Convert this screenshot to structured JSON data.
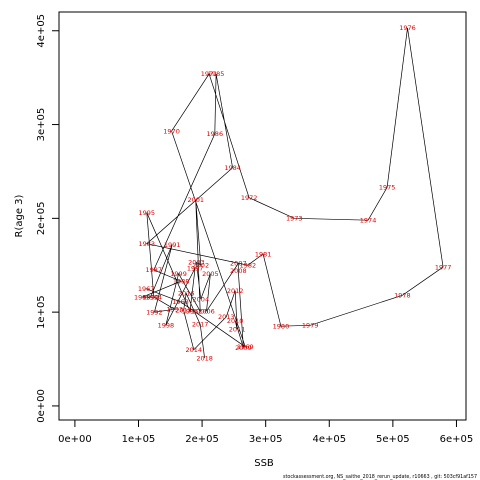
{
  "chart_data": {
    "type": "line",
    "title": "",
    "xlabel": "SSB",
    "ylabel": "R(age 3)",
    "xlim": [
      -25000,
      615000
    ],
    "ylim": [
      -15000,
      420000
    ],
    "x_ticks": [
      0,
      100000,
      200000,
      300000,
      400000,
      500000,
      600000
    ],
    "x_tick_labels": [
      "0e+00",
      "1e+05",
      "2e+05",
      "3e+05",
      "4e+05",
      "5e+05",
      "6e+05"
    ],
    "y_ticks": [
      0,
      100000,
      200000,
      300000,
      400000
    ],
    "y_tick_labels": [
      "0e+00",
      "1e+05",
      "2e+05",
      "3e+05",
      "4e+05"
    ],
    "grid": false,
    "label_color": "#e00000",
    "line_color": "#000000",
    "footer": "stockassessment.org, NS_saithe_2018_rerun_update, r10663 , git: 503cf91af157",
    "points": [
      {
        "year": "1967",
        "ssb": 580000,
        "r": 148000
      },
      {
        "year": "1968",
        "ssb": 515000,
        "r": 118000
      },
      {
        "year": "1969",
        "ssb": 370000,
        "r": 86000
      },
      {
        "year": "1970",
        "ssb": 323000,
        "r": 85000
      },
      {
        "year": "1971",
        "ssb": 295000,
        "r": 162000
      },
      {
        "year": "1972",
        "ssb": 272000,
        "r": 150000
      },
      {
        "year": "1973",
        "ssb": 275000,
        "r": 222000
      },
      {
        "year": "1974",
        "ssb": 155000,
        "r": 293000
      },
      {
        "year": "1975",
        "ssb": 210000,
        "r": 354000
      },
      {
        "year": "1976",
        "ssb": 219000,
        "r": 354000
      },
      {
        "year": "1977",
        "ssb": 250000,
        "r": 254000
      },
      {
        "year": "1978",
        "ssb": 260000,
        "r": 158000
      },
      {
        "year": "1979",
        "ssb": 260000,
        "r": 116000
      },
      {
        "year": "1980",
        "ssb": 380000,
        "r": 200000
      },
      {
        "year": "1981",
        "ssb": 465000,
        "r": 198000
      },
      {
        "year": "1982",
        "ssb": 490000,
        "r": 233000
      },
      {
        "year": "1983",
        "ssb": 524000,
        "r": 403000
      },
      {
        "year": "1984",
        "ssb": 580000,
        "r": 148000
      },
      {
        "year": "1985",
        "ssb": 118000,
        "r": 206000
      },
      {
        "year": "1986",
        "ssb": 110000,
        "r": 116000
      },
      {
        "year": "1987",
        "ssb": 115000,
        "r": 173000
      },
      {
        "year": "1988",
        "ssb": 107000,
        "r": 116000
      },
      {
        "year": "1989",
        "ssb": 120000,
        "r": 116000
      },
      {
        "year": "1990",
        "ssb": 122000,
        "r": 141000
      },
      {
        "year": "1991",
        "ssb": 123000,
        "r": 116000
      },
      {
        "year": "1992",
        "ssb": 128000,
        "r": 100000
      },
      {
        "year": "1993",
        "ssb": 143000,
        "r": 86000
      },
      {
        "year": "1994",
        "ssb": 150000,
        "r": 103000
      },
      {
        "year": "1995",
        "ssb": 145000,
        "r": 172000
      },
      {
        "year": "1996",
        "ssb": 160000,
        "r": 145000
      },
      {
        "year": "1997",
        "ssb": 175000,
        "r": 145000
      },
      {
        "year": "1998",
        "ssb": 160000,
        "r": 133000
      },
      {
        "year": "1999",
        "ssb": 170000,
        "r": 123000
      },
      {
        "year": "2000",
        "ssb": 188000,
        "r": 101000
      },
      {
        "year": "2001",
        "ssb": 190000,
        "r": 220000
      },
      {
        "year": "2002",
        "ssb": 195000,
        "r": 150000
      },
      {
        "year": "2003",
        "ssb": 192000,
        "r": 147000
      },
      {
        "year": "2004",
        "ssb": 200000,
        "r": 114000
      },
      {
        "year": "2005",
        "ssb": 213000,
        "r": 138000
      },
      {
        "year": "2006",
        "ssb": 207000,
        "r": 101000
      },
      {
        "year": "2007",
        "ssb": 252000,
        "r": 152000
      },
      {
        "year": "2008",
        "ssb": 246000,
        "r": 75000
      },
      {
        "year": "2009",
        "ssb": 267000,
        "r": 62000
      },
      {
        "year": "2010",
        "ssb": 250000,
        "r": 91000
      },
      {
        "year": "2011",
        "ssb": 255000,
        "r": 82000
      },
      {
        "year": "2012",
        "ssb": 253000,
        "r": 123000
      },
      {
        "year": "2013",
        "ssb": 240000,
        "r": 95000
      },
      {
        "year": "2014",
        "ssb": 188000,
        "r": 60000
      },
      {
        "year": "2015",
        "ssb": 180000,
        "r": 102000
      },
      {
        "year": "2016",
        "ssb": 175000,
        "r": 120000
      },
      {
        "year": "2017",
        "ssb": 200000,
        "r": 87000
      },
      {
        "year": "2018",
        "ssb": 204000,
        "r": 51000
      }
    ],
    "label_points": [
      {
        "year": "1967",
        "ssb": 112000,
        "r": 125000
      },
      {
        "year": "1968",
        "ssb": 166000,
        "r": 111000
      },
      {
        "year": "1969",
        "ssb": 268000,
        "r": 63000
      },
      {
        "year": "1970",
        "ssb": 152000,
        "r": 293000
      },
      {
        "year": "1971",
        "ssb": 211000,
        "r": 354000
      },
      {
        "year": "1972",
        "ssb": 274000,
        "r": 222000
      },
      {
        "year": "1973",
        "ssb": 345000,
        "r": 200000
      },
      {
        "year": "1974",
        "ssb": 461000,
        "r": 198000
      },
      {
        "year": "1975",
        "ssb": 491000,
        "r": 233000
      },
      {
        "year": "1976",
        "ssb": 523000,
        "r": 403000
      },
      {
        "year": "1977",
        "ssb": 579000,
        "r": 148000
      },
      {
        "year": "1978",
        "ssb": 515000,
        "r": 118000
      },
      {
        "year": "1979",
        "ssb": 370000,
        "r": 86000
      },
      {
        "year": "1980",
        "ssb": 324000,
        "r": 85000
      },
      {
        "year": "1981",
        "ssb": 296000,
        "r": 162000
      },
      {
        "year": "1982",
        "ssb": 272000,
        "r": 150000
      },
      {
        "year": "1983",
        "ssb": 113000,
        "r": 173000
      },
      {
        "year": "1984",
        "ssb": 248000,
        "r": 254000
      },
      {
        "year": "1985",
        "ssb": 222000,
        "r": 354000
      },
      {
        "year": "1986",
        "ssb": 220000,
        "r": 290000
      },
      {
        "year": "1987",
        "ssb": 124000,
        "r": 145000
      },
      {
        "year": "1988",
        "ssb": 167000,
        "r": 133000
      },
      {
        "year": "1989",
        "ssb": 106000,
        "r": 116000
      },
      {
        "year": "1990",
        "ssb": 119000,
        "r": 116000
      },
      {
        "year": "1991",
        "ssb": 153000,
        "r": 172000
      },
      {
        "year": "1992",
        "ssb": 125000,
        "r": 100000
      },
      {
        "year": "1993",
        "ssb": 157000,
        "r": 103000
      },
      {
        "year": "1994",
        "ssb": 124000,
        "r": 116000
      },
      {
        "year": "1995",
        "ssb": 113000,
        "r": 206000
      },
      {
        "year": "1996",
        "ssb": 181000,
        "r": 101000
      },
      {
        "year": "1997",
        "ssb": 189000,
        "r": 147000
      },
      {
        "year": "1998",
        "ssb": 143000,
        "r": 86000
      },
      {
        "year": "1999",
        "ssb": 163000,
        "r": 141000
      },
      {
        "year": "2000",
        "ssb": 197000,
        "r": 101000
      },
      {
        "year": "2001",
        "ssb": 190000,
        "r": 220000
      },
      {
        "year": "2002",
        "ssb": 198000,
        "r": 150000
      },
      {
        "year": "2003",
        "ssb": 191000,
        "r": 153000
      },
      {
        "year": "2004",
        "ssb": 198000,
        "r": 114000
      },
      {
        "year": "2005",
        "ssb": 213000,
        "r": 141000
      },
      {
        "year": "2006",
        "ssb": 207000,
        "r": 101000
      },
      {
        "year": "2007",
        "ssb": 257000,
        "r": 152000
      },
      {
        "year": "2008",
        "ssb": 257000,
        "r": 144000
      },
      {
        "year": "2009",
        "ssb": 265000,
        "r": 62000
      },
      {
        "year": "2010",
        "ssb": 252000,
        "r": 91000
      },
      {
        "year": "2011",
        "ssb": 255000,
        "r": 82000
      },
      {
        "year": "2012",
        "ssb": 252000,
        "r": 123000
      },
      {
        "year": "2013",
        "ssb": 238000,
        "r": 95000
      },
      {
        "year": "2014",
        "ssb": 187000,
        "r": 60000
      },
      {
        "year": "2015",
        "ssb": 171000,
        "r": 102000
      },
      {
        "year": "2016",
        "ssb": 175000,
        "r": 120000
      },
      {
        "year": "2017",
        "ssb": 197000,
        "r": 87000
      },
      {
        "year": "2018",
        "ssb": 204000,
        "r": 51000
      }
    ]
  }
}
